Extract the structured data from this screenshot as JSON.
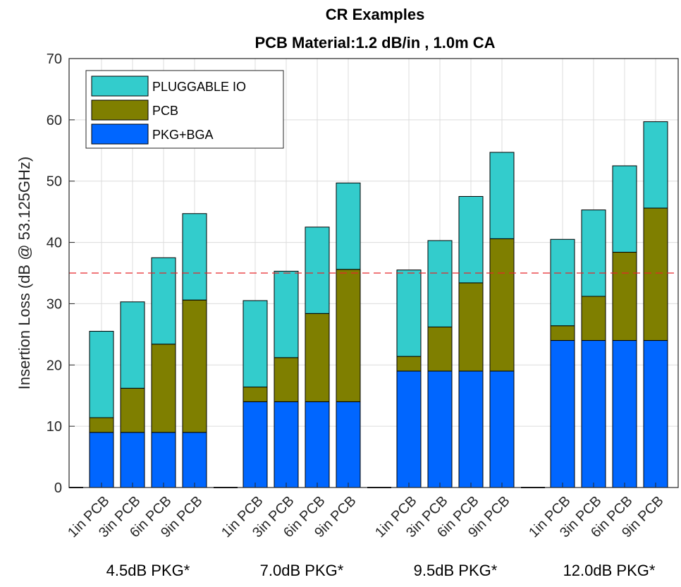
{
  "chart_data": {
    "type": "bar",
    "stacked": true,
    "title": "CR Examples",
    "subtitle": "PCB Material:1.2 dB/in , 1.0m CA",
    "ylabel": "Insertion Loss (dB @ 53.125GHz)",
    "xlabel": "",
    "ylim": [
      0,
      70
    ],
    "yticks": [
      0,
      10,
      20,
      30,
      40,
      50,
      60,
      70
    ],
    "grid": true,
    "reference_line": {
      "y": 35,
      "color": "#e8262a",
      "style": "dashed"
    },
    "legend": {
      "position": "top-left",
      "entries": [
        "PLUGGABLE IO",
        "PCB",
        "PKG+BGA"
      ]
    },
    "groups": [
      {
        "label": "4.5dB PKG*",
        "categories": [
          "1in PCB",
          "3in PCB",
          "6in PCB",
          "9in PCB"
        ],
        "PKG+BGA": [
          9,
          9,
          9,
          9
        ],
        "PCB": [
          2.4,
          7.2,
          14.4,
          21.6
        ],
        "PLUGGABLE IO": [
          14.1,
          14.1,
          14.1,
          14.1
        ]
      },
      {
        "label": "7.0dB PKG*",
        "categories": [
          "1in PCB",
          "3in PCB",
          "6in PCB",
          "9in PCB"
        ],
        "PKG+BGA": [
          14,
          14,
          14,
          14
        ],
        "PCB": [
          2.4,
          7.2,
          14.4,
          21.6
        ],
        "PLUGGABLE IO": [
          14.1,
          14.1,
          14.1,
          14.1
        ]
      },
      {
        "label": "9.5dB PKG*",
        "categories": [
          "1in PCB",
          "3in PCB",
          "6in PCB",
          "9in PCB"
        ],
        "PKG+BGA": [
          19,
          19,
          19,
          19
        ],
        "PCB": [
          2.4,
          7.2,
          14.4,
          21.6
        ],
        "PLUGGABLE IO": [
          14.1,
          14.1,
          14.1,
          14.1
        ]
      },
      {
        "label": "12.0dB PKG*",
        "categories": [
          "1in PCB",
          "3in PCB",
          "6in PCB",
          "9in PCB"
        ],
        "PKG+BGA": [
          24,
          24,
          24,
          24
        ],
        "PCB": [
          2.4,
          7.2,
          14.4,
          21.6
        ],
        "PLUGGABLE IO": [
          14.1,
          14.1,
          14.1,
          14.1
        ]
      }
    ],
    "colors": {
      "PKG+BGA": "#0066ff",
      "PCB": "#7f7f00",
      "PLUGGABLE IO": "#33cccc"
    }
  }
}
